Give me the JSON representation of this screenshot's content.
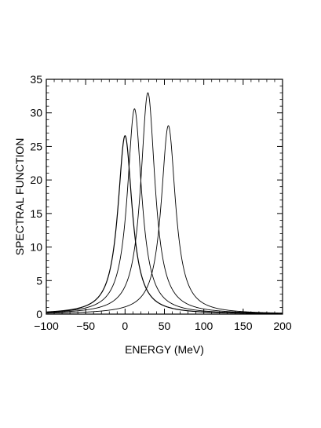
{
  "chart_data": {
    "type": "line",
    "title": "",
    "xlabel": "ENERGY (MeV)",
    "ylabel": "SPECTRAL FUNCTION",
    "xlim": [
      -100,
      200
    ],
    "ylim": [
      0,
      35
    ],
    "x_ticks": [
      -100,
      -50,
      0,
      50,
      100,
      150,
      200
    ],
    "x_tick_labels": [
      "−100",
      "−50",
      "0",
      "50",
      "100",
      "150",
      "200"
    ],
    "y_ticks": [
      0,
      5,
      10,
      15,
      20,
      25,
      30,
      35
    ],
    "y_tick_labels": [
      "0",
      "5",
      "10",
      "15",
      "20",
      "25",
      "30",
      "35"
    ],
    "grid": false,
    "legend": "none",
    "line_color": "#000000",
    "series": [
      {
        "peak_x": 0,
        "peak_y": 26.6
      },
      {
        "peak_x": 12,
        "peak_y": 30.6
      },
      {
        "peak_x": 29,
        "peak_y": 33.0
      },
      {
        "peak_x": 55,
        "peak_y": 28.1
      }
    ]
  }
}
